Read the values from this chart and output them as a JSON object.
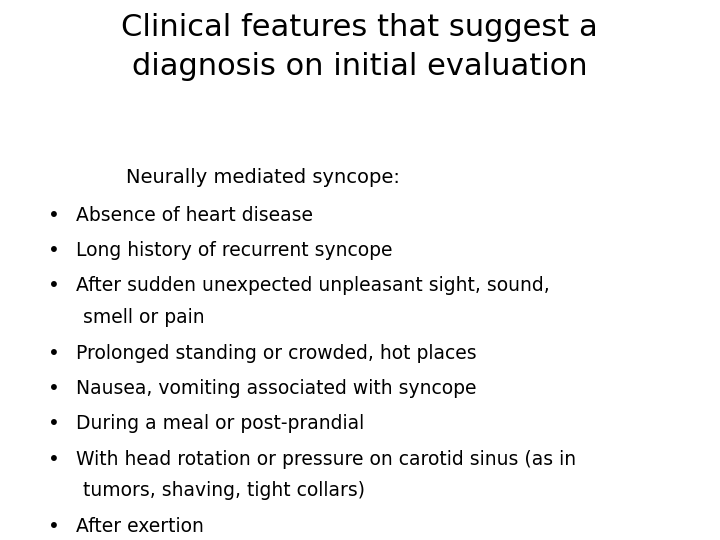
{
  "title_line1": "Clinical features that suggest a",
  "title_line2": "diagnosis on initial evaluation",
  "subtitle": "Neurally mediated syncope:",
  "bullets": [
    "Absence of heart disease",
    "Long history of recurrent syncope",
    "After sudden unexpected unpleasant sight, sound,\nsmell or pain",
    "Prolonged standing or crowded, hot places",
    "Nausea, vomiting associated with syncope",
    "During a meal or post-prandial",
    "With head rotation or pressure on carotid sinus (as in\ntumors, shaving, tight collars)",
    "After exertion"
  ],
  "bg_color": "#ffffff",
  "title_color": "#000000",
  "subtitle_color": "#000000",
  "bullet_color": "#000000",
  "title_fontsize": 22,
  "subtitle_fontsize": 14,
  "bullet_fontsize": 13.5
}
